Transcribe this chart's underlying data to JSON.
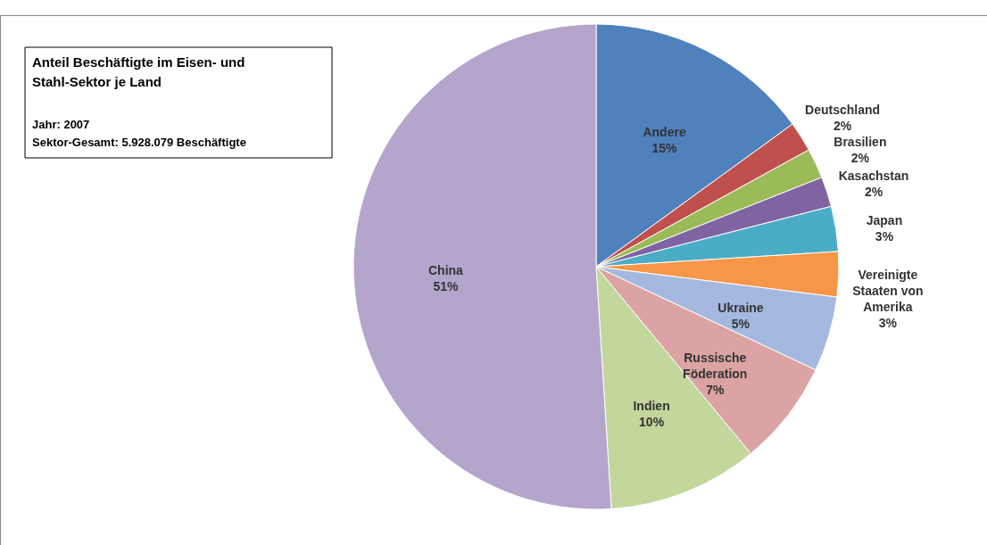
{
  "chart_data": {
    "type": "pie",
    "title": "Anteil Beschäftigte im Eisen- und Stahl-Sektor je Land",
    "subtitle": "Jahr: 2007",
    "annotations": [
      "Sektor-Gesamt: 5.928.079 Beschäftigte"
    ],
    "categories": [
      "Andere",
      "Deutschland",
      "Brasilien",
      "Kasachstan",
      "Japan",
      "Vereinigte Staaten von Amerika",
      "Ukraine",
      "Russische Föderation",
      "Indien",
      "China"
    ],
    "values": [
      15,
      2,
      2,
      2,
      3,
      3,
      5,
      7,
      10,
      51
    ],
    "value_labels": [
      "15%",
      "2%",
      "2%",
      "2%",
      "3%",
      "3%",
      "5%",
      "7%",
      "10%",
      "51%"
    ],
    "colors": [
      "#4f81bd",
      "#c0504d",
      "#9bbb59",
      "#8064a2",
      "#4bacc6",
      "#f79646",
      "#a5b9e0",
      "#dba3a3",
      "#c3d69b",
      "#b3a5cc"
    ],
    "legend": false
  }
}
